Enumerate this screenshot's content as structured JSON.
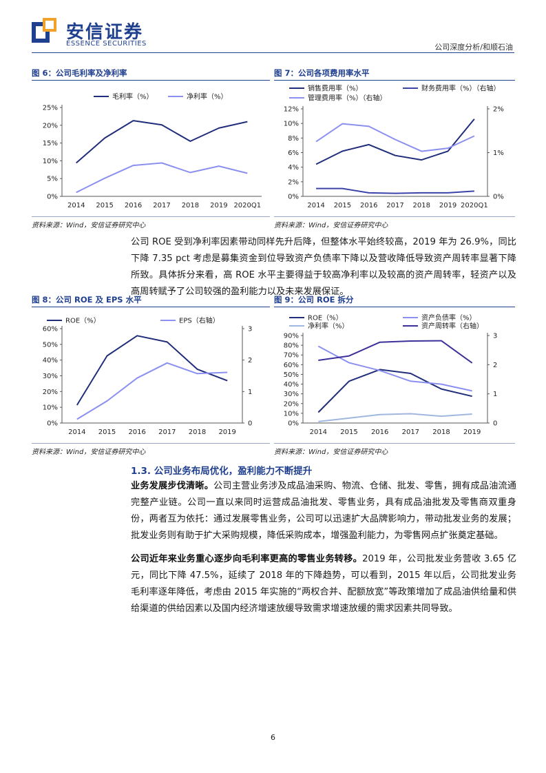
{
  "header": {
    "logo_cn": "安信证券",
    "logo_en": "ESSENCE SECURITIES",
    "report_tag": "公司深度分析/和顺石油"
  },
  "figures": {
    "fig6": {
      "title": "图 6：公司毛利率及净利率",
      "source": "资料来源：Wind，安信证券研究中心"
    },
    "fig7": {
      "title": "图 7：公司各项费用率水平",
      "source": "资料来源：Wind，安信证券研究中心"
    },
    "fig8": {
      "title": "图 8：公司 ROE 及 EPS 水平",
      "source": "资料来源：Wind，安信证券研究中心"
    },
    "fig9": {
      "title": "图 9：公司 ROE 拆分",
      "source": "资料来源：Wind，安信证券研究中心"
    }
  },
  "chart_data": [
    {
      "id": "fig6",
      "type": "line",
      "categories": [
        "2014",
        "2015",
        "2016",
        "2017",
        "2018",
        "2019",
        "2020Q1"
      ],
      "series": [
        {
          "name": "毛利率（%）",
          "values": [
            9.4,
            16.4,
            21.3,
            20.1,
            15.5,
            19.2,
            21.0
          ],
          "color": "#1f2d7a"
        },
        {
          "name": "净利率（%）",
          "values": [
            1.1,
            5.1,
            8.7,
            9.4,
            6.7,
            8.5,
            6.5
          ],
          "color": "#8a8ff0"
        }
      ],
      "yticks": [
        "0%",
        "5%",
        "10%",
        "15%",
        "20%",
        "25%"
      ],
      "ylim": [
        0,
        25
      ],
      "legend": "top"
    },
    {
      "id": "fig7",
      "type": "line",
      "categories": [
        "2014",
        "2015",
        "2016",
        "2017",
        "2018",
        "2019",
        "2020Q1"
      ],
      "series": [
        {
          "name": "销售费用率（%）",
          "values": [
            4.4,
            6.2,
            7.1,
            5.6,
            5.0,
            6.2,
            10.6
          ],
          "color": "#1f2d7a",
          "axis": "left"
        },
        {
          "name": "财务费用率（%）（右轴）",
          "values": [
            0.18,
            0.18,
            0.08,
            0.07,
            0.08,
            0.08,
            0.12
          ],
          "color": "#3b43a8",
          "axis": "right"
        },
        {
          "name": "管理费用率（%）（右轴）",
          "values": [
            1.25,
            1.66,
            1.6,
            1.3,
            1.03,
            1.1,
            1.38
          ],
          "color": "#8a8ff0",
          "axis": "right"
        }
      ],
      "yticks": [
        "0%",
        "2%",
        "4%",
        "6%",
        "8%",
        "10%",
        "12%"
      ],
      "ylim": [
        0,
        12
      ],
      "y2ticks": [
        "0%",
        "1%",
        "2%"
      ],
      "y2lim": [
        0,
        2
      ],
      "legend": "top"
    },
    {
      "id": "fig8",
      "type": "line",
      "categories": [
        "2014",
        "2015",
        "2016",
        "2017",
        "2018",
        "2019"
      ],
      "series": [
        {
          "name": "ROE（%）",
          "values": [
            11.4,
            42.7,
            55.5,
            51.5,
            34.2,
            26.9
          ],
          "color": "#1f2d7a",
          "axis": "left"
        },
        {
          "name": "EPS（右轴）",
          "values": [
            0.12,
            0.7,
            1.43,
            1.91,
            1.57,
            1.61
          ],
          "color": "#8a8ff0",
          "axis": "right"
        }
      ],
      "yticks": [
        "0%",
        "10%",
        "20%",
        "30%",
        "40%",
        "50%",
        "60%"
      ],
      "ylim": [
        0,
        60
      ],
      "y2ticks": [
        "0",
        "1",
        "2",
        "3"
      ],
      "y2lim": [
        0,
        3
      ],
      "legend": "top"
    },
    {
      "id": "fig9",
      "type": "line",
      "categories": [
        "2014",
        "2015",
        "2016",
        "2017",
        "2018",
        "2019"
      ],
      "series": [
        {
          "name": "ROE（%）",
          "values": [
            11.0,
            43.0,
            55.0,
            51.0,
            35.0,
            27.5
          ],
          "color": "#1f2d7a",
          "axis": "left"
        },
        {
          "name": "资产负债率（%）",
          "values": [
            79.0,
            62.0,
            54.0,
            43.0,
            40.0,
            33.0
          ],
          "color": "#8a8ff0",
          "axis": "left"
        },
        {
          "name": "净利率（%）",
          "values": [
            1.5,
            5.0,
            8.7,
            9.6,
            7.0,
            9.2
          ],
          "color": "#9fb7df",
          "axis": "left"
        },
        {
          "name": "资产周转率（右轴）",
          "values": [
            2.15,
            2.3,
            2.77,
            2.81,
            2.82,
            2.06
          ],
          "color": "#3b2f9a",
          "axis": "right"
        }
      ],
      "yticks": [
        "0%",
        "10%",
        "20%",
        "30%",
        "40%",
        "50%",
        "60%",
        "70%",
        "80%",
        "90%"
      ],
      "ylim": [
        0,
        90
      ],
      "y2ticks": [
        "0",
        "1",
        "2",
        "3"
      ],
      "y2lim": [
        0,
        3
      ],
      "legend": "top"
    }
  ],
  "body": {
    "p1": "公司 ROE 受到净利率因素带动同样先升后降，但整体水平始终较高，2019 年为 26.9%，同比下降 7.35 pct 考虑是募集资金到位导致资产负债率下降以及营收降低导致资产周转率显著下降所致。具体拆分来看，高 ROE 水平主要得益于较高净利率以及较高的资产周转率，轻资产以及高周转赋予了公司较强的盈利能力以及未来发展保证。",
    "section_title": "1.3. 公司业务布局优化，盈利能力不断提升",
    "p2_bold": "业务发展步伐清晰。",
    "p2": "公司主营业务涉及成品油采购、物流、仓储、批发、零售，拥有成品油流通完整产业链。公司一直以来同时运营成品油批发、零售业务，具有成品油批发及零售商双重身份，两者互为依托：通过发展零售业务，公司可以迅速扩大品牌影响力，带动批发业务的发展；批发业务则有助于扩大采购规模，降低采购成本，增强盈利能力，为零售网点扩张奠定基础。",
    "p3_bold": "公司近年来业务重心逐步向毛利率更高的零售业务转移。",
    "p3": "2019 年，公司批发业务营收 3.65 亿元，同比下降 47.5%，延续了 2018 年的下降趋势，可以看到，2015 年以后，公司批发业务毛利率逐年降低，考虑由 2015 年实施的“两权合并、配额放宽”等政策增加了成品油供给量和供给渠道的供给因素以及国内经济增速放缓导致需求增速放缓的需求因素共同导致。"
  },
  "footer": {
    "page_number": "6"
  }
}
